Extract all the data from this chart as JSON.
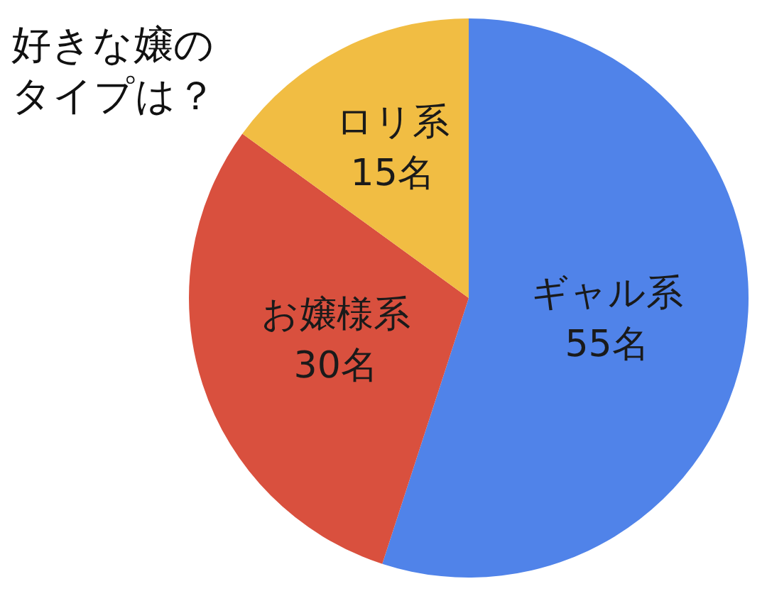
{
  "chart_data": {
    "type": "pie",
    "title": "好きな嬢のタイプは？",
    "categories": [
      "ギャル系",
      "お嬢様系",
      "ロリ系"
    ],
    "values": [
      55,
      30,
      15
    ],
    "value_labels": [
      "55名",
      "30名",
      "15名"
    ],
    "colors": [
      "#5083e9",
      "#d9503e",
      "#f1bd43"
    ],
    "legend": false
  }
}
